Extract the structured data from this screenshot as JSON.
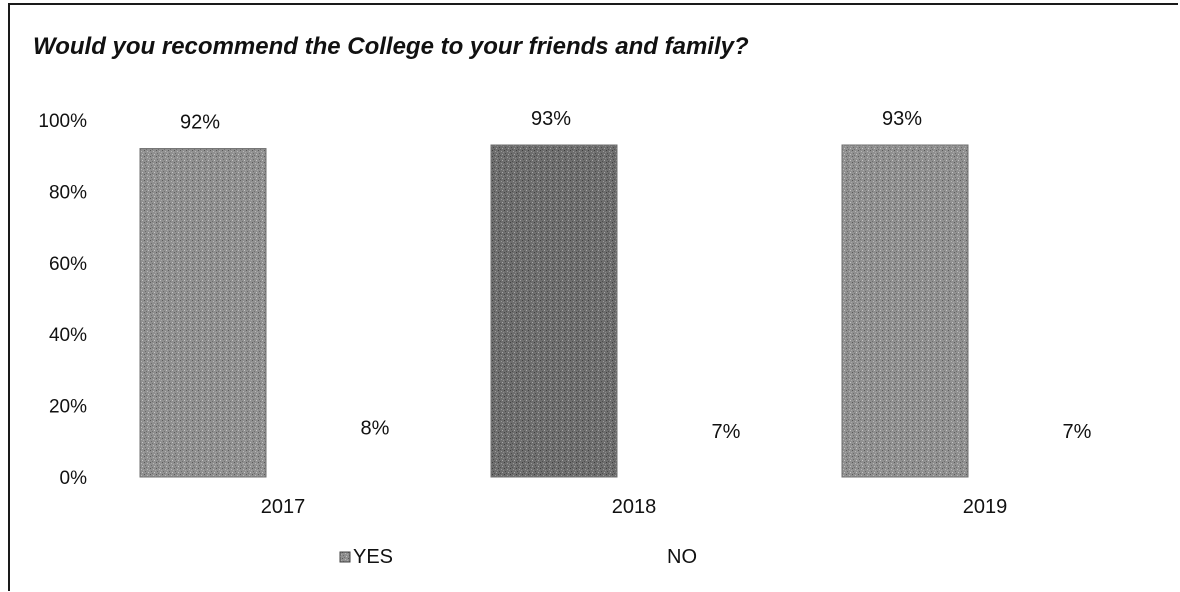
{
  "chart_data": {
    "type": "bar",
    "title": "Would you recommend the College to your friends and family?",
    "categories": [
      "2017",
      "2018",
      "2019"
    ],
    "series": [
      {
        "name": "YES",
        "values": [
          92,
          93,
          93
        ],
        "labels": [
          "92%",
          "93%",
          "93%"
        ]
      },
      {
        "name": "NO",
        "values": [
          8,
          7,
          7
        ],
        "labels": [
          "8%",
          "7%",
          "7%"
        ]
      }
    ],
    "yticks": [
      "0%",
      "20%",
      "40%",
      "60%",
      "80%",
      "100%"
    ],
    "ylim": [
      0,
      100
    ],
    "grid": false,
    "legend": "bottom",
    "colors": {
      "yes_fill": "#8c8c8c",
      "no_fill": "#ffffff",
      "text": "#111111"
    }
  }
}
